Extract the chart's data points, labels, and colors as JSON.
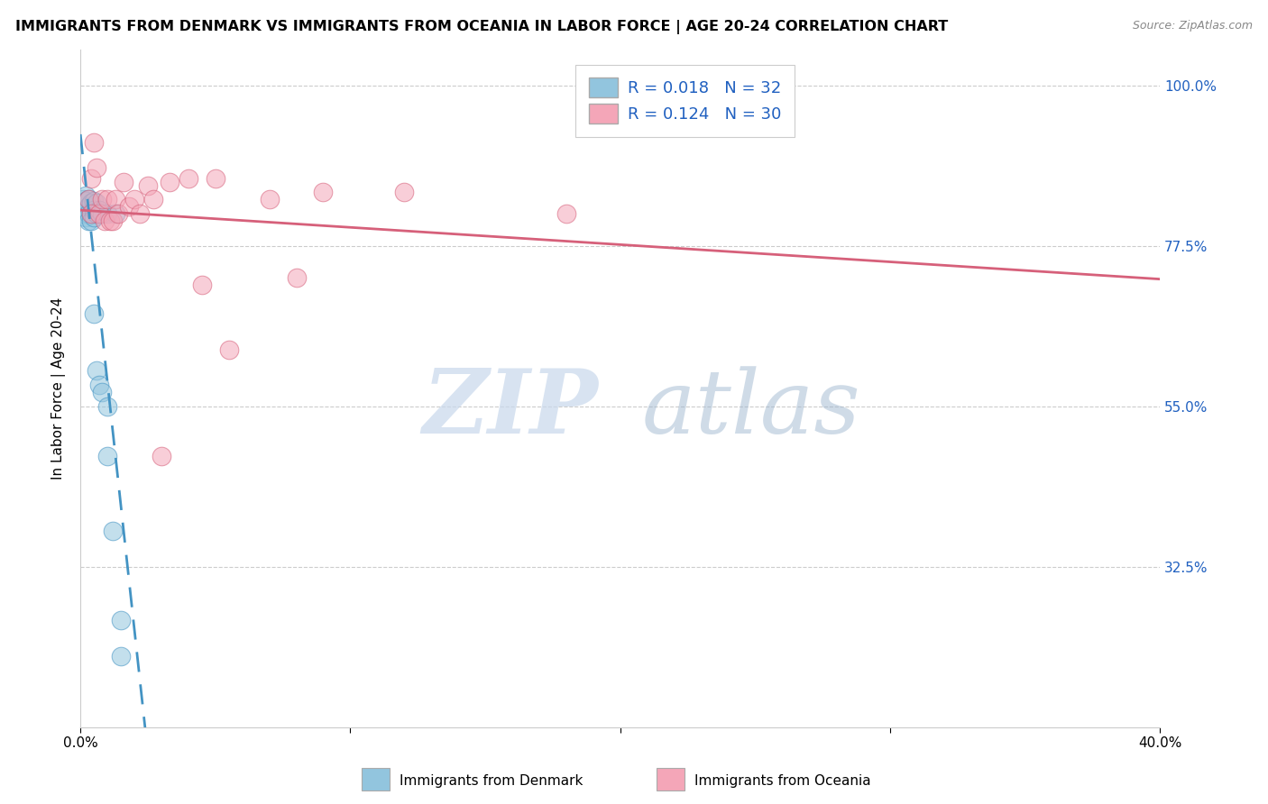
{
  "title": "IMMIGRANTS FROM DENMARK VS IMMIGRANTS FROM OCEANIA IN LABOR FORCE | AGE 20-24 CORRELATION CHART",
  "source": "Source: ZipAtlas.com",
  "ylabel": "In Labor Force | Age 20-24",
  "xlim": [
    0.0,
    0.4
  ],
  "ylim": [
    0.1,
    1.05
  ],
  "xticks": [
    0.0,
    0.1,
    0.2,
    0.3,
    0.4
  ],
  "xticklabels": [
    "0.0%",
    "",
    "",
    "",
    "40.0%"
  ],
  "yticks": [
    0.325,
    0.55,
    0.775,
    1.0
  ],
  "yticklabels": [
    "32.5%",
    "55.0%",
    "77.5%",
    "100.0%"
  ],
  "legend_R_blue": "0.018",
  "legend_N_blue": "32",
  "legend_R_pink": "0.124",
  "legend_N_pink": "30",
  "blue_color": "#92c5de",
  "pink_color": "#f4a6b8",
  "blue_line_color": "#4393c3",
  "pink_line_color": "#d6607a",
  "denmark_x": [
    0.001,
    0.001,
    0.001,
    0.002,
    0.002,
    0.002,
    0.002,
    0.003,
    0.003,
    0.003,
    0.003,
    0.004,
    0.004,
    0.004,
    0.005,
    0.005,
    0.005,
    0.005,
    0.006,
    0.006,
    0.006,
    0.007,
    0.007,
    0.008,
    0.008,
    0.01,
    0.01,
    0.01,
    0.012,
    0.013,
    0.015,
    0.015
  ],
  "denmark_y": [
    0.84,
    0.83,
    0.82,
    0.845,
    0.838,
    0.825,
    0.815,
    0.84,
    0.83,
    0.82,
    0.81,
    0.835,
    0.82,
    0.81,
    0.838,
    0.825,
    0.815,
    0.68,
    0.835,
    0.82,
    0.6,
    0.825,
    0.58,
    0.82,
    0.57,
    0.55,
    0.82,
    0.48,
    0.375,
    0.82,
    0.25,
    0.2
  ],
  "oceania_x": [
    0.003,
    0.004,
    0.004,
    0.005,
    0.006,
    0.007,
    0.008,
    0.009,
    0.01,
    0.011,
    0.012,
    0.013,
    0.014,
    0.016,
    0.018,
    0.02,
    0.022,
    0.025,
    0.027,
    0.03,
    0.033,
    0.04,
    0.045,
    0.05,
    0.055,
    0.07,
    0.08,
    0.09,
    0.12,
    0.18
  ],
  "oceania_y": [
    0.84,
    0.87,
    0.82,
    0.92,
    0.885,
    0.82,
    0.84,
    0.81,
    0.84,
    0.81,
    0.81,
    0.84,
    0.82,
    0.865,
    0.83,
    0.84,
    0.82,
    0.86,
    0.84,
    0.48,
    0.865,
    0.87,
    0.72,
    0.87,
    0.63,
    0.84,
    0.73,
    0.85,
    0.85,
    0.82
  ],
  "watermark_zip": "ZIP",
  "watermark_atlas": "atlas",
  "title_fontsize": 11.5,
  "label_fontsize": 11,
  "tick_fontsize": 11
}
